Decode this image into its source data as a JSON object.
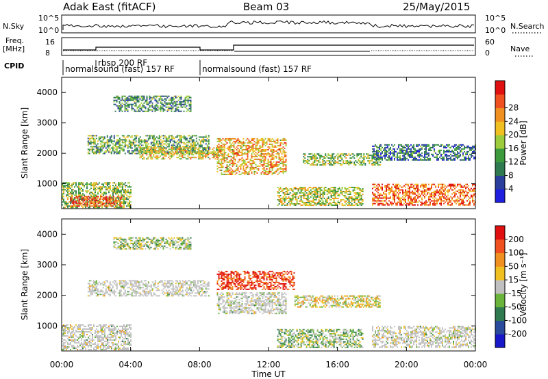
{
  "header": {
    "station": "Adak East (fitACF)",
    "beam": "Beam 03",
    "date": "25/May/2015"
  },
  "top_panels": {
    "nsky_label": "N.Sky",
    "nsky_ticks": [
      "10^5",
      "10^0"
    ],
    "nsearch_label": "N.Search",
    "nsearch_ticks": [
      "10^5",
      "10^0"
    ],
    "freq_label": "Freq.",
    "freq_unit": "[MHz]",
    "freq_ticks": [
      "16",
      "8"
    ],
    "nave_label": "Nave",
    "nave_ticks": [
      "60",
      "0"
    ],
    "cpid_label": "CPID",
    "cpid_segments": [
      "normalsound (fast) 157 RF",
      "rbsp 200 RF",
      "normalsound (fast) 157 RF"
    ]
  },
  "axes": {
    "xlabel": "Time UT",
    "x_ticks": [
      "00:00",
      "04:00",
      "08:00",
      "12:00",
      "16:00",
      "20:00",
      "00:00"
    ],
    "ylabel": "Slant Range [km]",
    "y_ticks": [
      "1000",
      "2000",
      "3000",
      "4000"
    ]
  },
  "colorbars": {
    "power": {
      "label": "Power [dB]",
      "ticks": [
        "4",
        "8",
        "12",
        "16",
        "20",
        "24",
        "28"
      ],
      "colors": [
        "#1f1fe0",
        "#2a3f9c",
        "#2f7a4e",
        "#3c9a3c",
        "#9ccc3c",
        "#f0c020",
        "#f09020",
        "#f05020",
        "#e01010"
      ]
    },
    "velocity": {
      "label": "Velocity [m s⁻¹]",
      "ticks": [
        "200",
        "100",
        "50",
        "15",
        "-15",
        "-50",
        "-100",
        "-200"
      ],
      "colors": [
        "#1818c8",
        "#2a4a9c",
        "#2f7a4e",
        "#6ab43c",
        "#c0c0c0",
        "#f0c020",
        "#f09020",
        "#f05020",
        "#e01010"
      ]
    }
  },
  "chart_data": [
    {
      "type": "heatmap",
      "title": "Power",
      "x_range": [
        "00:00",
        "24:00"
      ],
      "y_range_km": [
        180,
        4500
      ],
      "value_unit": "dB",
      "value_range": [
        0,
        30
      ],
      "echo_regions": [
        {
          "t0": 0.0,
          "t1": 4.0,
          "r0": 200,
          "r1": 1050,
          "level": 14
        },
        {
          "t0": 0.5,
          "t1": 3.5,
          "r0": 250,
          "r1": 600,
          "level": 26
        },
        {
          "t0": 1.5,
          "t1": 8.5,
          "r0": 2000,
          "r1": 2600,
          "level": 12
        },
        {
          "t0": 3.0,
          "t1": 7.5,
          "r0": 3400,
          "r1": 3900,
          "level": 10
        },
        {
          "t0": 4.5,
          "t1": 9.5,
          "r0": 1800,
          "r1": 2200,
          "level": 18
        },
        {
          "t0": 9.0,
          "t1": 13.0,
          "r0": 1300,
          "r1": 2500,
          "level": 20
        },
        {
          "t0": 12.5,
          "t1": 17.5,
          "r0": 300,
          "r1": 900,
          "level": 16
        },
        {
          "t0": 14.0,
          "t1": 18.5,
          "r0": 1600,
          "r1": 2000,
          "level": 14
        },
        {
          "t0": 18.0,
          "t1": 24.0,
          "r0": 300,
          "r1": 1000,
          "level": 24
        },
        {
          "t0": 18.0,
          "t1": 24.0,
          "r0": 1800,
          "r1": 2300,
          "level": 8
        }
      ]
    },
    {
      "type": "heatmap",
      "title": "Velocity",
      "x_range": [
        "00:00",
        "24:00"
      ],
      "y_range_km": [
        180,
        4500
      ],
      "value_unit": "m s^-1",
      "value_range": [
        -200,
        200
      ],
      "echo_regions": [
        {
          "t0": 0.0,
          "t1": 4.0,
          "r0": 200,
          "r1": 1050,
          "level": 0
        },
        {
          "t0": 1.5,
          "t1": 8.5,
          "r0": 2000,
          "r1": 2500,
          "level": 0
        },
        {
          "t0": 3.0,
          "t1": 7.5,
          "r0": 3500,
          "r1": 3900,
          "level": -20
        },
        {
          "t0": 9.0,
          "t1": 13.5,
          "r0": 2200,
          "r1": 2800,
          "level": 150
        },
        {
          "t0": 9.0,
          "t1": 13.0,
          "r0": 1400,
          "r1": 2100,
          "level": 0
        },
        {
          "t0": 12.5,
          "t1": 17.5,
          "r0": 300,
          "r1": 900,
          "level": -30
        },
        {
          "t0": 13.5,
          "t1": 18.5,
          "r0": 1600,
          "r1": 2000,
          "level": 20
        },
        {
          "t0": 18.0,
          "t1": 24.0,
          "r0": 300,
          "r1": 1000,
          "level": 0
        }
      ]
    }
  ]
}
